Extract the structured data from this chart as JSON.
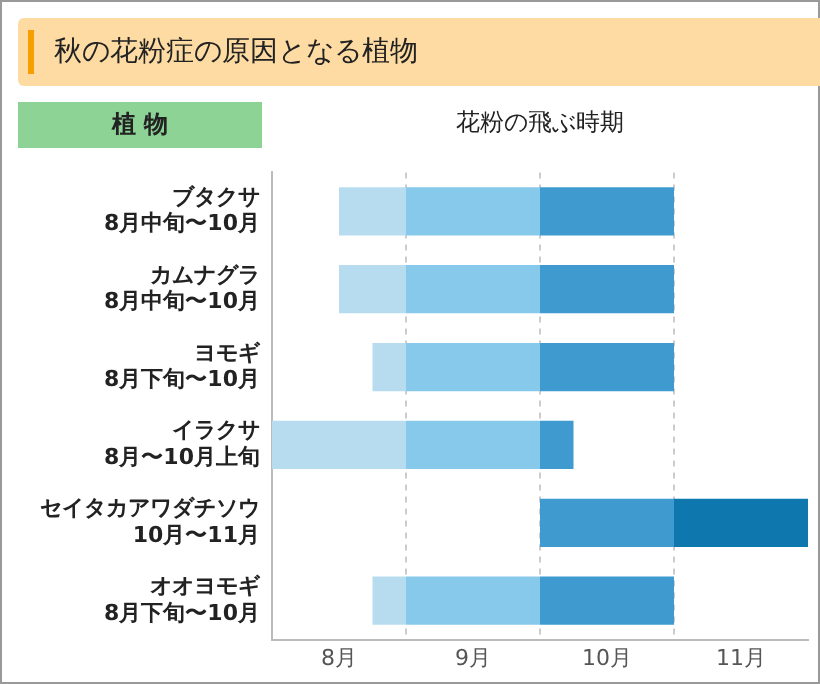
{
  "chart_data": {
    "type": "bar",
    "orientation": "horizontal",
    "title": "秋の花粉症の原因となる植物",
    "ylabel": "植 物",
    "xlabel": "花粉の飛ぶ時期",
    "categories": [
      "ブタクサ\n8月中旬〜10月",
      "カムナグラ\n8月中旬〜10月",
      "ヨモギ\n8月下旬〜10月",
      "イラクサ\n8月〜10月上旬",
      "セイタカアワダチソウ\n10月〜11月",
      "オオヨモギ\n8月下旬〜10月"
    ],
    "series": [
      {
        "color": "#b8dcef",
        "base": [
          8.5,
          8.5,
          8.75,
          8,
          null,
          8.75
        ],
        "values": [
          0.5,
          0.5,
          0.25,
          1,
          null,
          0.25
        ]
      },
      {
        "color": "#87c9ea",
        "base": [
          9,
          9,
          9,
          9,
          null,
          9
        ],
        "values": [
          1,
          1,
          1,
          1,
          null,
          1
        ]
      },
      {
        "color": "#3f9bcf",
        "base": [
          10,
          10,
          10,
          10,
          10,
          10
        ],
        "values": [
          1,
          1,
          1,
          0.25,
          1,
          1
        ]
      },
      {
        "color": "#0e77ae",
        "base": [
          null,
          null,
          null,
          null,
          11,
          null
        ],
        "values": [
          null,
          null,
          null,
          null,
          1,
          null
        ]
      }
    ],
    "xlim": [
      8,
      12
    ],
    "xticks": [
      {
        "value": 8.5,
        "label": "8月"
      },
      {
        "value": 9,
        "label": null
      },
      {
        "value": 9.5,
        "label": "9月"
      },
      {
        "value": 10,
        "label": null
      },
      {
        "value": 10.5,
        "label": "10月"
      },
      {
        "value": 11,
        "label": null
      },
      {
        "value": 11.5,
        "label": "11月"
      }
    ],
    "grid": "x",
    "legend": false
  }
}
